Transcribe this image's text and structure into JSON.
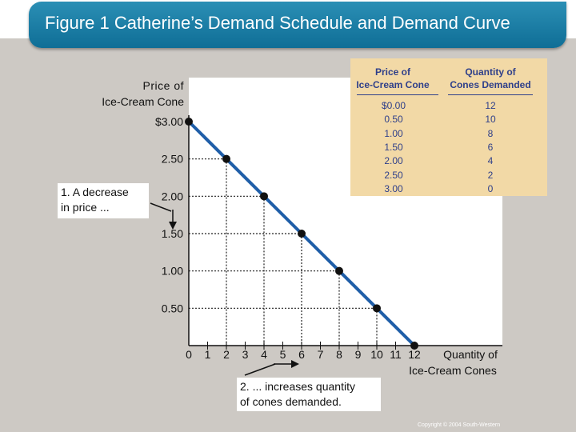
{
  "slide": {
    "title": "Figure 1 Catherine’s Demand Schedule and Demand Curve",
    "copyright": "Copyright © 2004 South-Western"
  },
  "colors": {
    "title_bar": "#1a7ea8",
    "curve": "#1f5ea8",
    "table_background": "#f2d9a6",
    "table_text": "#2e3f8a"
  },
  "chart_data": {
    "type": "line",
    "title": "",
    "ylabel_lines": [
      "Price of",
      "Ice-Cream Cone"
    ],
    "xlabel_lines": [
      "Quantity of",
      "Ice-Cream Cones"
    ],
    "x": [
      0,
      2,
      4,
      6,
      8,
      10,
      12
    ],
    "y": [
      3.0,
      2.5,
      2.0,
      1.5,
      1.0,
      0.5,
      0.0
    ],
    "xlim": [
      0,
      12
    ],
    "ylim": [
      0,
      3.0
    ],
    "x_ticks": [
      "0",
      "1",
      "2",
      "3",
      "4",
      "5",
      "6",
      "7",
      "8",
      "9",
      "10",
      "11",
      "12"
    ],
    "y_ticks": [
      "$3.00",
      "2.50",
      "2.00",
      "1.50",
      "1.00",
      "0.50"
    ],
    "grid": "dotted guides from each point to both axes",
    "annotations": {
      "price_note": [
        "1. A decrease",
        "in price ..."
      ],
      "quantity_note": [
        "2. ... increases quantity",
        "of cones demanded."
      ]
    },
    "schedule_table": {
      "headers": [
        [
          "Price of",
          "Ice-Cream Cone"
        ],
        [
          "Quantity of",
          "Cones Demanded"
        ]
      ],
      "rows": [
        [
          "$0.00",
          "12"
        ],
        [
          "0.50",
          "10"
        ],
        [
          "1.00",
          "8"
        ],
        [
          "1.50",
          "6"
        ],
        [
          "2.00",
          "4"
        ],
        [
          "2.50",
          "2"
        ],
        [
          "3.00",
          "0"
        ]
      ]
    }
  }
}
